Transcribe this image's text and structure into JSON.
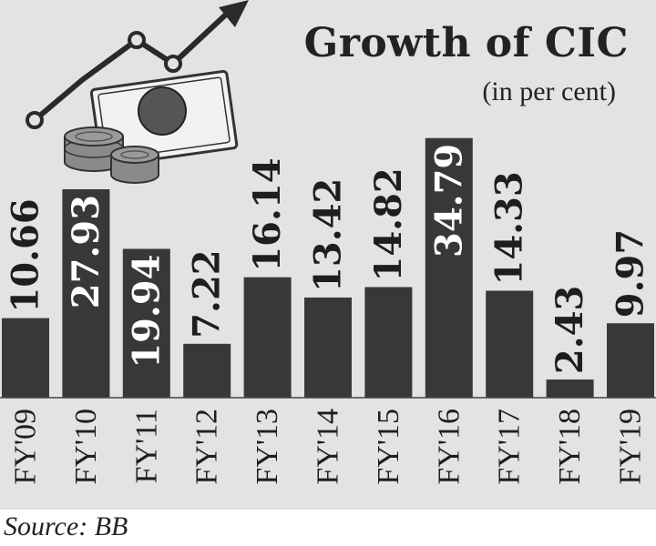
{
  "title": "Growth of CIC",
  "subtitle": "(in per cent)",
  "source": "Source: BB",
  "colors": {
    "background": "#e3e3e3",
    "bar": "#383838",
    "label_dark": "#1e1e1e",
    "label_light": "#ffffff"
  },
  "chart_data": {
    "type": "bar",
    "categories": [
      "FY'09",
      "FY'10",
      "FY'11",
      "FY'12",
      "FY'13",
      "FY'14",
      "FY'15",
      "FY'16",
      "FY'17",
      "FY'18",
      "FY'19"
    ],
    "values": [
      10.66,
      27.93,
      19.94,
      7.22,
      16.14,
      13.42,
      14.82,
      34.79,
      14.33,
      2.43,
      9.97
    ],
    "value_labels": [
      "10.66",
      "27.93",
      "19.94",
      "7.22",
      "16.14",
      "13.42",
      "14.82",
      "34.79",
      "14.33",
      "2.43",
      "9.97"
    ],
    "label_inside_bar": [
      false,
      true,
      true,
      false,
      false,
      false,
      false,
      true,
      false,
      false,
      false
    ],
    "ylim": [
      0,
      40
    ],
    "grid": false,
    "legend": "none",
    "orientation": "vertical bars, rotated value and category labels"
  }
}
